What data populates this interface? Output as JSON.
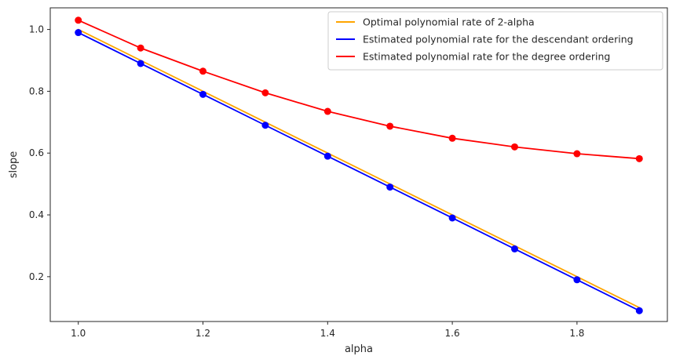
{
  "chart_data": {
    "type": "line",
    "x": [
      1.0,
      1.1,
      1.2,
      1.3,
      1.4,
      1.5,
      1.6,
      1.7,
      1.8,
      1.9
    ],
    "series": [
      {
        "name": "Optimal polynomial rate of 2-alpha",
        "color": "#ffa500",
        "markers": false,
        "values": [
          1.0,
          0.9,
          0.8,
          0.7,
          0.6,
          0.5,
          0.4,
          0.3,
          0.2,
          0.1
        ]
      },
      {
        "name": "Estimated polynomial rate for the descendant ordering",
        "color": "#0000ff",
        "markers": true,
        "values": [
          0.99,
          0.89,
          0.79,
          0.69,
          0.59,
          0.49,
          0.39,
          0.29,
          0.19,
          0.09
        ]
      },
      {
        "name": "Estimated polynomial rate for the degree ordering",
        "color": "#ff0000",
        "markers": true,
        "values": [
          1.03,
          0.94,
          0.865,
          0.795,
          0.735,
          0.687,
          0.648,
          0.62,
          0.598,
          0.582
        ]
      }
    ],
    "title": "",
    "xlabel": "alpha",
    "ylabel": "slope",
    "xlim": [
      0.955,
      1.945
    ],
    "ylim": [
      0.055,
      1.07
    ],
    "xticks": [
      "1.0",
      "1.2",
      "1.4",
      "1.6",
      "1.8"
    ],
    "yticks": [
      "0.2",
      "0.4",
      "0.6",
      "0.8",
      "1.0"
    ],
    "grid": false,
    "legend_position": "top-right"
  }
}
